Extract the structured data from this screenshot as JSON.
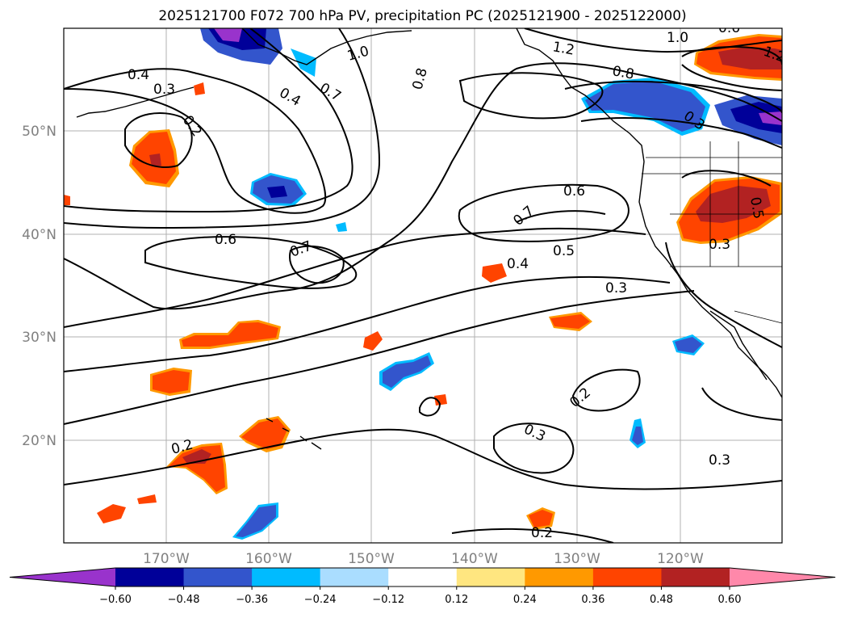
{
  "title": "2025121700 F072 700 hPa PV, precipitation PC (2025121900 - 2025122000)",
  "latitude_labels": [
    "50°N",
    "40°N",
    "30°N",
    "20°N"
  ],
  "longitude_labels": [
    "170°W",
    "160°W",
    "150°W",
    "140°W",
    "130°W",
    "120°W"
  ],
  "colorbar": {
    "tick_labels": [
      "−0.60",
      "−0.48",
      "−0.36",
      "−0.24",
      "−0.12",
      "0.12",
      "0.24",
      "0.36",
      "0.48",
      "0.60"
    ],
    "colors": [
      "#9933cc",
      "#000099",
      "#3355cc",
      "#00bbff",
      "#aaddff",
      "#ffffff",
      "#ffe680",
      "#ff9900",
      "#ff4400",
      "#b22222",
      "#ff88aa"
    ]
  },
  "contour_labels": [
    "0.4",
    "0.3",
    "0.2",
    "0.4",
    "0.7",
    "1.0",
    "1.2",
    "1.0",
    "0.8",
    "0.8",
    "0.6",
    "1.2",
    "0.7",
    "0.6",
    "0.5",
    "0.4",
    "0.3",
    "0.6",
    "0.7",
    "0.3",
    "0.2",
    "0.3",
    "0.2",
    "0.3",
    "0.2",
    "0.3",
    "0.5"
  ]
}
